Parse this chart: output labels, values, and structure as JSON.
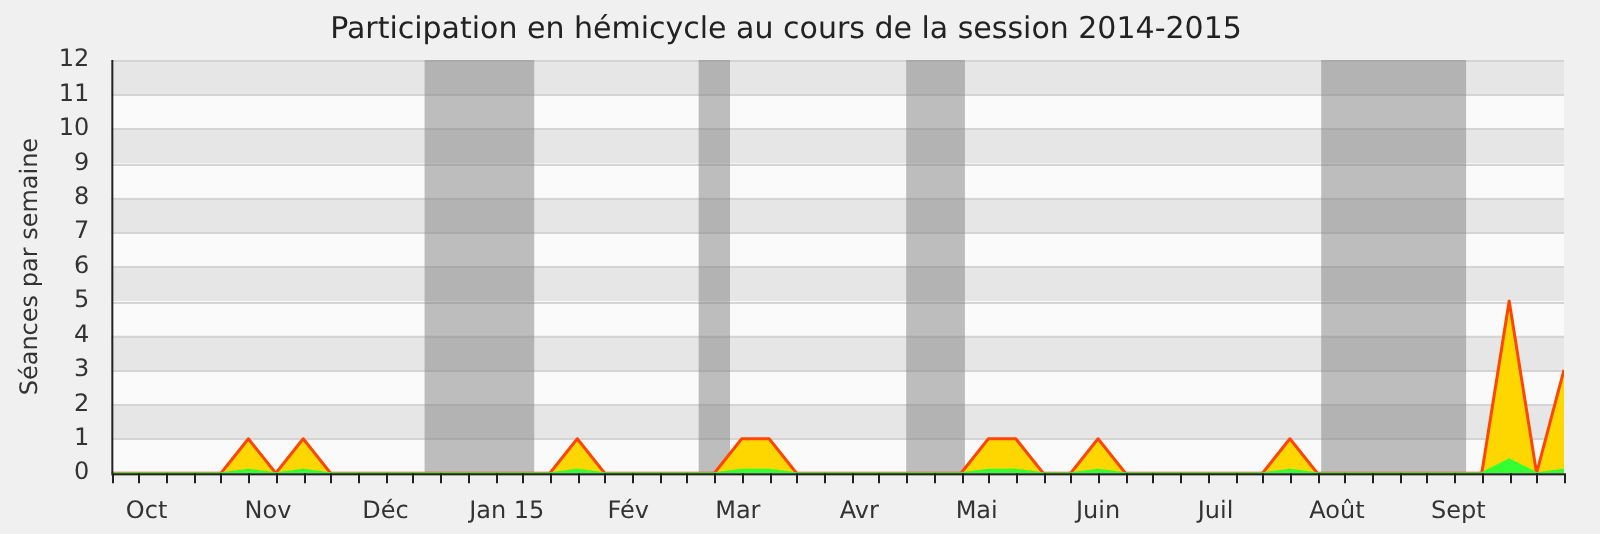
{
  "chart_data": {
    "type": "area",
    "title": "Participation en hémicycle au cours de la session 2014-2015",
    "ylabel": "Séances par semaine",
    "x": [
      "2014-09-22",
      "2014-09-29",
      "2014-10-06",
      "2014-10-13",
      "2014-10-20",
      "2014-10-27",
      "2014-11-03",
      "2014-11-10",
      "2014-11-17",
      "2014-11-24",
      "2014-12-01",
      "2014-12-08",
      "2014-12-15",
      "2014-12-22",
      "2014-12-29",
      "2015-01-05",
      "2015-01-12",
      "2015-01-19",
      "2015-01-26",
      "2015-02-02",
      "2015-02-09",
      "2015-02-16",
      "2015-02-23",
      "2015-03-02",
      "2015-03-09",
      "2015-03-16",
      "2015-03-23",
      "2015-03-30",
      "2015-04-06",
      "2015-04-13",
      "2015-04-20",
      "2015-04-27",
      "2015-05-04",
      "2015-05-11",
      "2015-05-18",
      "2015-05-25",
      "2015-06-01",
      "2015-06-08",
      "2015-06-15",
      "2015-06-22",
      "2015-06-29",
      "2015-07-06",
      "2015-07-13",
      "2015-07-20",
      "2015-07-27",
      "2015-08-03",
      "2015-08-10",
      "2015-08-17",
      "2015-08-24",
      "2015-08-31",
      "2015-09-07",
      "2015-09-14",
      "2015-09-21",
      "2015-09-28"
    ],
    "series": [
      {
        "color": "#ffd700",
        "values": [
          0,
          0,
          0,
          0,
          0,
          1,
          0,
          1,
          0,
          0,
          0,
          0,
          0,
          0,
          0,
          0,
          0,
          1,
          0,
          0,
          0,
          0,
          0,
          1,
          1,
          0,
          0,
          0,
          0,
          0,
          0,
          0,
          1,
          1,
          0,
          0,
          1,
          0,
          0,
          0,
          0,
          0,
          0,
          1,
          0,
          0,
          0,
          0,
          0,
          0,
          0,
          5,
          0,
          3
        ]
      },
      {
        "color": "#33ff33",
        "values": [
          0,
          0,
          0,
          0,
          0,
          0.1,
          0,
          0.1,
          0,
          0,
          0,
          0,
          0,
          0,
          0,
          0,
          0,
          0.1,
          0,
          0,
          0,
          0,
          0,
          0.1,
          0.1,
          0,
          0,
          0,
          0,
          0,
          0,
          0,
          0.1,
          0.1,
          0,
          0,
          0.1,
          0,
          0,
          0,
          0,
          0,
          0,
          0.1,
          0,
          0,
          0,
          0,
          0,
          0,
          0,
          0.4,
          0,
          0.1
        ]
      }
    ],
    "xlim": [
      "2014-09-22",
      "2015-09-28"
    ],
    "xticks": [
      {
        "value": "2014-10-01",
        "label": "Oct"
      },
      {
        "value": "2014-11-01",
        "label": "Nov"
      },
      {
        "value": "2014-12-01",
        "label": "Déc"
      },
      {
        "value": "2015-01-01",
        "label": "Jan 15"
      },
      {
        "value": "2015-02-01",
        "label": "Fév"
      },
      {
        "value": "2015-03-01",
        "label": "Mar"
      },
      {
        "value": "2015-04-01",
        "label": "Avr"
      },
      {
        "value": "2015-05-01",
        "label": "Mai"
      },
      {
        "value": "2015-06-01",
        "label": "Juin"
      },
      {
        "value": "2015-07-01",
        "label": "Juil"
      },
      {
        "value": "2015-08-01",
        "label": "Août"
      },
      {
        "value": "2015-09-01",
        "label": "Sept"
      }
    ],
    "ylim": [
      0,
      12
    ],
    "yticks": [
      0,
      1,
      2,
      3,
      4,
      5,
      6,
      7,
      8,
      9,
      10,
      11,
      12
    ],
    "bands": [
      {
        "axis": "x",
        "from": "2014-12-11",
        "to": "2015-01-08",
        "color": "#808080"
      },
      {
        "axis": "x",
        "from": "2015-02-19",
        "to": "2015-02-27",
        "color": "#808080"
      },
      {
        "axis": "x",
        "from": "2015-04-13",
        "to": "2015-04-28",
        "color": "#808080"
      },
      {
        "axis": "x",
        "from": "2015-07-28",
        "to": "2015-09-03",
        "color": "#808080"
      }
    ],
    "grid": "y",
    "legend": false,
    "marker": "none",
    "line_style": "solid"
  }
}
